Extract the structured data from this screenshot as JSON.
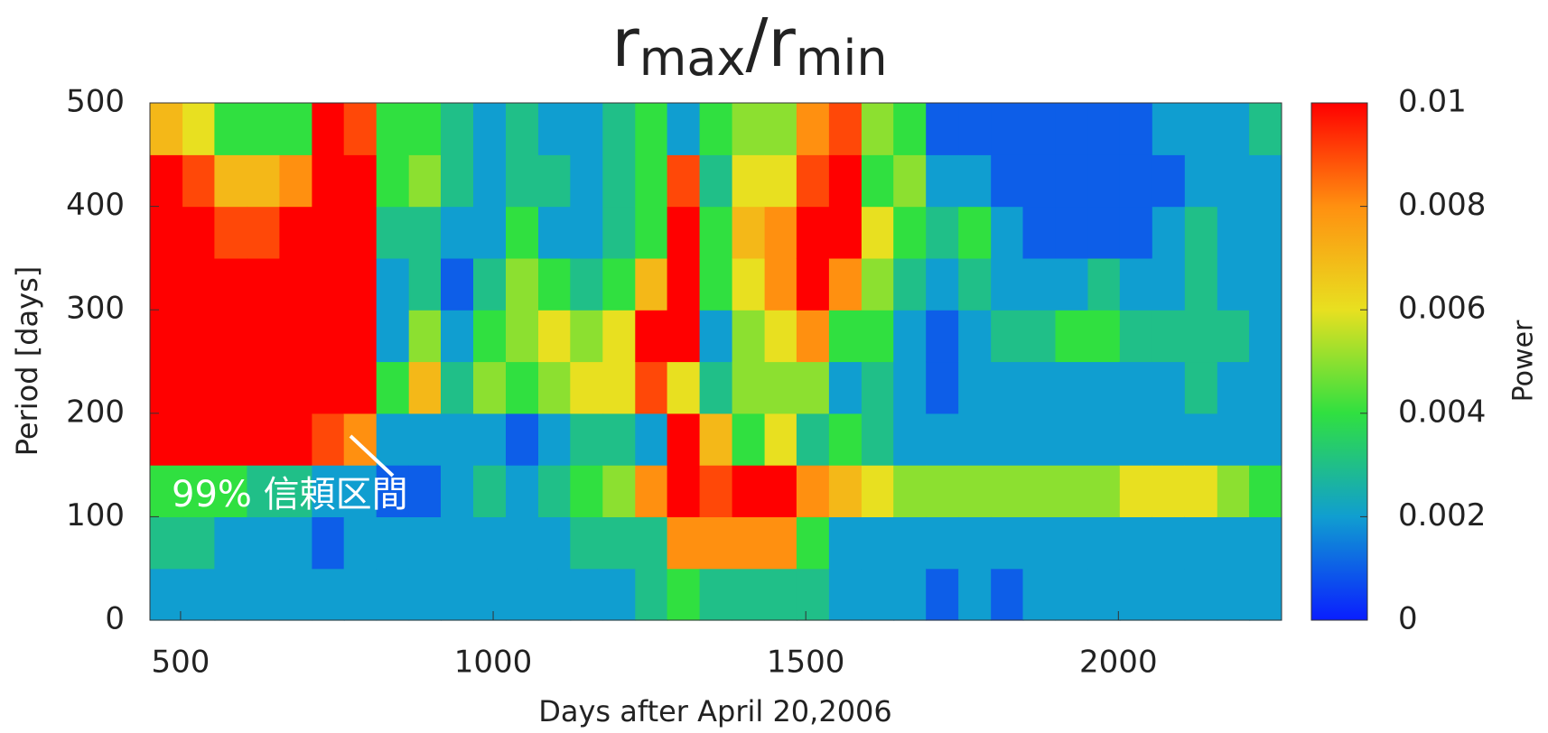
{
  "chart_data": {
    "type": "heatmap",
    "title": [
      "r",
      "max",
      "/",
      "r",
      "min"
    ],
    "x_label": "Days after April 20,2006",
    "y_label": "Period [days]",
    "colorbar_label": "Power",
    "annotation": "99% 信頼区間",
    "xlim": [
      451,
      2261
    ],
    "xticks": [
      500,
      1000,
      1500,
      2000
    ],
    "ylim": [
      0,
      500
    ],
    "yticks": [
      0,
      100,
      200,
      300,
      400,
      500
    ],
    "zlim": [
      0,
      0.01
    ],
    "zticks": [
      0,
      0.002,
      0.004,
      0.006,
      0.008,
      0.01
    ],
    "colormap": [
      "#0a1eff",
      "#109ed0",
      "#30e040",
      "#e8e020",
      "#ff9010",
      "#ff0000"
    ],
    "x": [
      477,
      529,
      580,
      632,
      684,
      736,
      787,
      839,
      891,
      942,
      994,
      1046,
      1098,
      1149,
      1201,
      1253,
      1304,
      1356,
      1408,
      1460,
      1511,
      1563,
      1615,
      1666,
      1718,
      1770,
      1822,
      1873,
      1925,
      1977,
      2028,
      2080,
      2132,
      2184,
      2235
    ],
    "y": [
      25,
      75,
      125,
      175,
      225,
      275,
      325,
      375,
      425,
      475
    ],
    "z": [
      [
        0.002,
        0.003,
        0.004,
        0.01,
        0.01,
        0.01,
        0.01,
        0.01,
        0.01,
        0.007
      ],
      [
        0.002,
        0.003,
        0.004,
        0.01,
        0.01,
        0.01,
        0.01,
        0.01,
        0.009,
        0.006
      ],
      [
        0.002,
        0.002,
        0.004,
        0.01,
        0.01,
        0.01,
        0.01,
        0.009,
        0.007,
        0.004
      ],
      [
        0.002,
        0.002,
        0.003,
        0.01,
        0.01,
        0.01,
        0.01,
        0.009,
        0.007,
        0.004
      ],
      [
        0.002,
        0.002,
        0.003,
        0.01,
        0.01,
        0.01,
        0.01,
        0.01,
        0.008,
        0.004
      ],
      [
        0.002,
        0.001,
        0.002,
        0.009,
        0.01,
        0.01,
        0.01,
        0.01,
        0.01,
        0.01
      ],
      [
        0.002,
        0.002,
        0.002,
        0.008,
        0.01,
        0.01,
        0.01,
        0.01,
        0.01,
        0.009
      ],
      [
        0.002,
        0.002,
        0.001,
        0.002,
        0.004,
        0.002,
        0.002,
        0.003,
        0.004,
        0.004
      ],
      [
        0.002,
        0.002,
        0.001,
        0.002,
        0.007,
        0.005,
        0.003,
        0.003,
        0.005,
        0.004
      ],
      [
        0.002,
        0.002,
        0.002,
        0.002,
        0.003,
        0.002,
        0.001,
        0.002,
        0.003,
        0.003
      ],
      [
        0.002,
        0.002,
        0.003,
        0.002,
        0.005,
        0.004,
        0.003,
        0.002,
        0.002,
        0.002
      ],
      [
        0.002,
        0.002,
        0.002,
        0.001,
        0.004,
        0.005,
        0.005,
        0.004,
        0.003,
        0.003
      ],
      [
        0.002,
        0.002,
        0.003,
        0.002,
        0.005,
        0.006,
        0.004,
        0.002,
        0.003,
        0.002
      ],
      [
        0.002,
        0.003,
        0.004,
        0.003,
        0.006,
        0.005,
        0.003,
        0.002,
        0.002,
        0.002
      ],
      [
        0.002,
        0.003,
        0.005,
        0.003,
        0.006,
        0.006,
        0.004,
        0.003,
        0.003,
        0.003
      ],
      [
        0.003,
        0.003,
        0.008,
        0.002,
        0.009,
        0.01,
        0.007,
        0.004,
        0.004,
        0.004
      ],
      [
        0.004,
        0.008,
        0.01,
        0.01,
        0.006,
        0.01,
        0.01,
        0.01,
        0.009,
        0.002
      ],
      [
        0.003,
        0.008,
        0.009,
        0.007,
        0.003,
        0.002,
        0.004,
        0.004,
        0.003,
        0.004
      ],
      [
        0.003,
        0.008,
        0.01,
        0.004,
        0.005,
        0.005,
        0.006,
        0.007,
        0.006,
        0.005
      ],
      [
        0.003,
        0.008,
        0.01,
        0.006,
        0.005,
        0.006,
        0.008,
        0.008,
        0.006,
        0.005
      ],
      [
        0.003,
        0.004,
        0.008,
        0.003,
        0.005,
        0.008,
        0.01,
        0.01,
        0.009,
        0.008
      ],
      [
        0.002,
        0.002,
        0.007,
        0.004,
        0.002,
        0.004,
        0.008,
        0.01,
        0.01,
        0.009
      ],
      [
        0.002,
        0.002,
        0.006,
        0.003,
        0.003,
        0.004,
        0.005,
        0.006,
        0.004,
        0.005
      ],
      [
        0.002,
        0.002,
        0.005,
        0.002,
        0.002,
        0.002,
        0.003,
        0.004,
        0.005,
        0.004
      ],
      [
        0.001,
        0.002,
        0.005,
        0.002,
        0.001,
        0.001,
        0.002,
        0.003,
        0.002,
        0.001
      ],
      [
        0.002,
        0.002,
        0.005,
        0.002,
        0.002,
        0.002,
        0.003,
        0.004,
        0.002,
        0.001
      ],
      [
        0.001,
        0.002,
        0.005,
        0.002,
        0.002,
        0.003,
        0.002,
        0.002,
        0.001,
        0.001
      ],
      [
        0.002,
        0.002,
        0.005,
        0.002,
        0.002,
        0.003,
        0.002,
        0.001,
        0.001,
        0.001
      ],
      [
        0.002,
        0.002,
        0.005,
        0.002,
        0.002,
        0.004,
        0.002,
        0.001,
        0.001,
        0.001
      ],
      [
        0.002,
        0.002,
        0.005,
        0.002,
        0.002,
        0.004,
        0.003,
        0.001,
        0.001,
        0.001
      ],
      [
        0.002,
        0.002,
        0.006,
        0.002,
        0.002,
        0.003,
        0.002,
        0.001,
        0.001,
        0.001
      ],
      [
        0.002,
        0.002,
        0.006,
        0.002,
        0.002,
        0.003,
        0.002,
        0.002,
        0.001,
        0.002
      ],
      [
        0.002,
        0.002,
        0.006,
        0.002,
        0.003,
        0.003,
        0.003,
        0.003,
        0.002,
        0.002
      ],
      [
        0.002,
        0.002,
        0.005,
        0.002,
        0.002,
        0.003,
        0.002,
        0.002,
        0.002,
        0.002
      ],
      [
        0.002,
        0.002,
        0.004,
        0.002,
        0.002,
        0.002,
        0.002,
        0.002,
        0.002,
        0.003
      ]
    ]
  }
}
